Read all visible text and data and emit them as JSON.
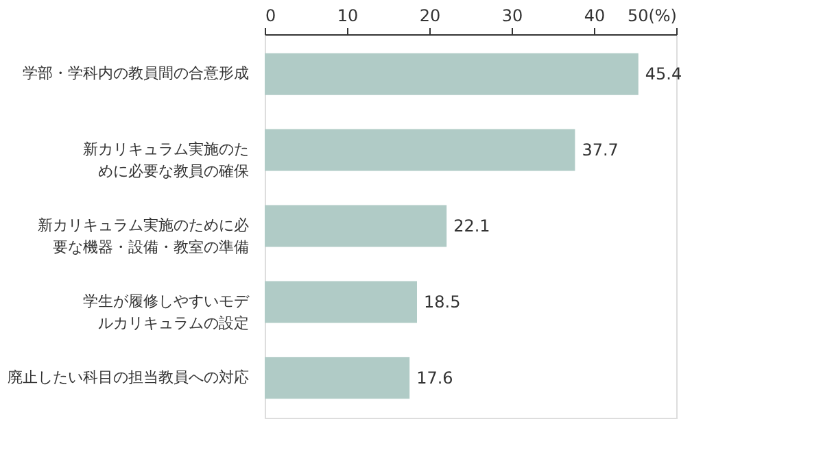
{
  "chart_data": {
    "type": "bar",
    "orientation": "horizontal",
    "categories": [
      "学部・学科内の教員間の合意形成",
      "新カリキュラム実施のために必要な教員の確保",
      "新カリキュラム実施のために必要な機器・設備・教室の準備",
      "学生が履修しやすいモデルカリキュラムの設定",
      "廃止したい科目の担当教員への対応"
    ],
    "values": [
      45.4,
      37.7,
      22.1,
      18.5,
      17.6
    ],
    "color": "#b0cbc6",
    "xlim": [
      0,
      50
    ],
    "xticks": [
      0,
      10,
      20,
      30,
      40,
      {
        "value": 50,
        "label": "50(%)"
      }
    ],
    "data_labels": true,
    "grid": false
  }
}
